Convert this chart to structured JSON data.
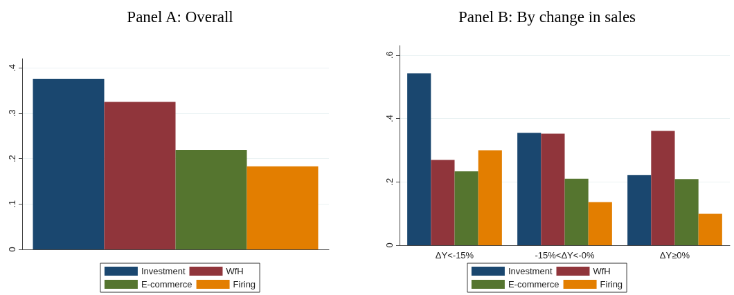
{
  "chart_data": [
    {
      "type": "bar",
      "title": "Panel A: Overall",
      "categories": [
        null
      ],
      "series": [
        {
          "name": "Investment",
          "color": "#1a476f",
          "values": [
            0.376
          ]
        },
        {
          "name": "WfH",
          "color": "#90353b",
          "values": [
            0.325
          ]
        },
        {
          "name": "E-commerce",
          "color": "#55752f",
          "values": [
            0.219
          ]
        },
        {
          "name": "Firing",
          "color": "#e37e00",
          "values": [
            0.183
          ]
        }
      ],
      "ylim": [
        0,
        0.42
      ],
      "yticks": [
        0,
        {
          "value": 0.1,
          "label": ".1"
        },
        {
          "value": 0.2,
          "label": ".2"
        },
        {
          "value": 0.3,
          "label": ".3"
        },
        {
          "value": 0.4,
          "label": ".4"
        }
      ],
      "grid": "y",
      "legend": "bottom"
    },
    {
      "type": "bar",
      "title": "Panel B: By change in sales",
      "categories": [
        "ΔY<-15%",
        "-15%<ΔY<-0%",
        "ΔY≥0%"
      ],
      "series": [
        {
          "name": "Investment",
          "color": "#1a476f",
          "values": [
            0.542,
            0.355,
            0.222
          ]
        },
        {
          "name": "WfH",
          "color": "#90353b",
          "values": [
            0.269,
            0.352,
            0.361
          ]
        },
        {
          "name": "E-commerce",
          "color": "#55752f",
          "values": [
            0.233,
            0.21,
            0.209
          ]
        },
        {
          "name": "Firing",
          "color": "#e37e00",
          "values": [
            0.3,
            0.136,
            0.099
          ]
        }
      ],
      "ylim": [
        0,
        0.63
      ],
      "yticks": [
        0,
        {
          "value": 0.2,
          "label": ".2"
        },
        {
          "value": 0.4,
          "label": ".4"
        },
        {
          "value": 0.6,
          "label": ".6"
        }
      ],
      "grid": "y",
      "legend": "bottom"
    }
  ]
}
